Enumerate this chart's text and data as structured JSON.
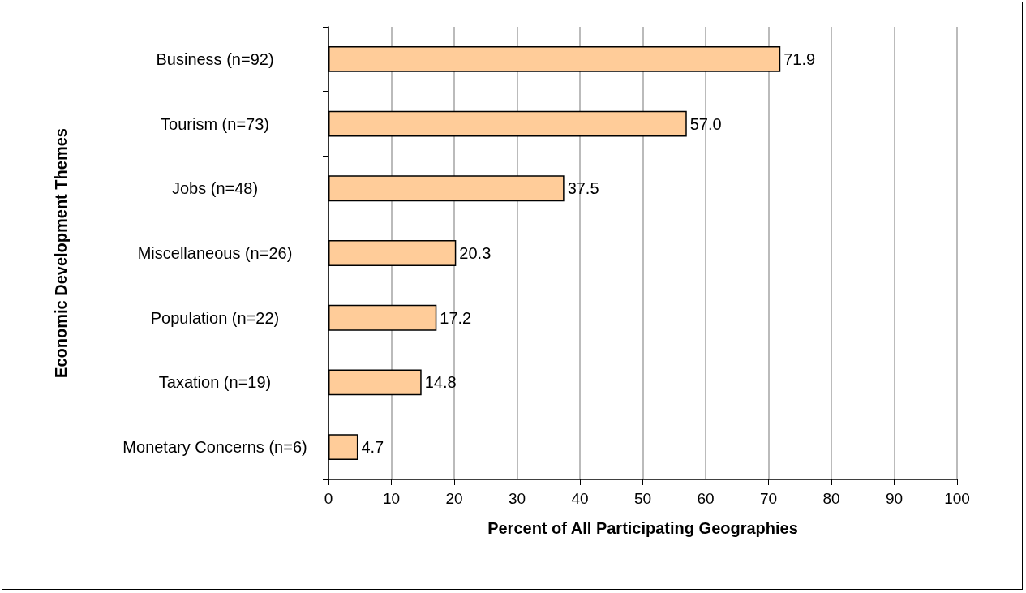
{
  "chart_data": {
    "type": "bar",
    "orientation": "horizontal",
    "xlabel": "Percent of All Participating Geographies",
    "ylabel": "Economic Development Themes",
    "categories": [
      "Business (n=92)",
      "Tourism (n=73)",
      "Jobs (n=48)",
      "Miscellaneous (n=26)",
      "Population (n=22)",
      "Taxation (n=19)",
      "Monetary Concerns (n=6)"
    ],
    "values": [
      71.9,
      57.0,
      37.5,
      20.3,
      17.2,
      14.8,
      4.7
    ],
    "value_labels": [
      "71.9",
      "57.0",
      "37.5",
      "20.3",
      "17.2",
      "14.8",
      "4.7"
    ],
    "color": "#ffcc99",
    "xlim": [
      0,
      100
    ],
    "xticks": [
      0,
      10,
      20,
      30,
      40,
      50,
      60,
      70,
      80,
      90,
      100
    ],
    "grid": "x"
  }
}
